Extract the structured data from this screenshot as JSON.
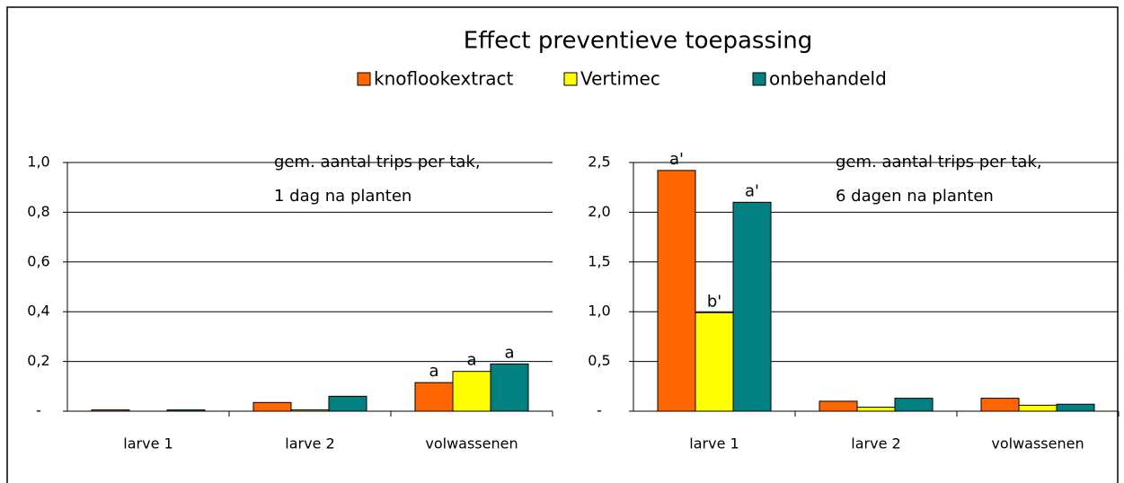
{
  "title": "Effect preventieve toepassing",
  "chart_data": [
    {
      "type": "bar",
      "note": [
        "gem. aantal trips per tak,",
        "1 dag na planten"
      ],
      "categories": [
        "larve 1",
        "larve 2",
        "volwassenen"
      ],
      "series": [
        {
          "name": "knoflookextract",
          "color": "#ff6600",
          "values": [
            0.005,
            0.035,
            0.115
          ],
          "labels": [
            null,
            null,
            "a"
          ]
        },
        {
          "name": "Vertimec",
          "color": "#ffff00",
          "values": [
            0,
            0.005,
            0.16
          ],
          "labels": [
            null,
            null,
            "a"
          ]
        },
        {
          "name": "onbehandeld",
          "color": "#008080",
          "values": [
            0.005,
            0.06,
            0.19
          ],
          "labels": [
            null,
            null,
            "a"
          ]
        }
      ],
      "ylim": [
        0,
        1
      ],
      "yticks": [
        {
          "value": 0,
          "label": "-"
        },
        {
          "value": 0.2,
          "label": "0,2"
        },
        {
          "value": 0.4,
          "label": "0,4"
        },
        {
          "value": 0.6,
          "label": "0,6"
        },
        {
          "value": 0.8,
          "label": "0,8"
        },
        {
          "value": 1,
          "label": "1,0"
        }
      ],
      "grid": true
    },
    {
      "type": "bar",
      "note": [
        "gem. aantal trips per tak,",
        "6 dagen na planten"
      ],
      "categories": [
        "larve 1",
        "larve 2",
        "volwassenen"
      ],
      "series": [
        {
          "name": "knoflookextract",
          "color": "#ff6600",
          "values": [
            2.42,
            0.1,
            0.13
          ],
          "labels": [
            "a'",
            null,
            null
          ]
        },
        {
          "name": "Vertimec",
          "color": "#ffff00",
          "values": [
            0.99,
            0.04,
            0.06
          ],
          "labels": [
            "b'",
            null,
            null
          ]
        },
        {
          "name": "onbehandeld",
          "color": "#008080",
          "values": [
            2.1,
            0.13,
            0.07
          ],
          "labels": [
            "a'",
            null,
            null
          ]
        }
      ],
      "ylim": [
        0,
        2.5
      ],
      "yticks": [
        {
          "value": 0,
          "label": "-"
        },
        {
          "value": 0.5,
          "label": "0,5"
        },
        {
          "value": 1,
          "label": "1,0"
        },
        {
          "value": 1.5,
          "label": "1,5"
        },
        {
          "value": 2,
          "label": "2,0"
        },
        {
          "value": 2.5,
          "label": "2,5"
        }
      ],
      "grid": true
    }
  ]
}
